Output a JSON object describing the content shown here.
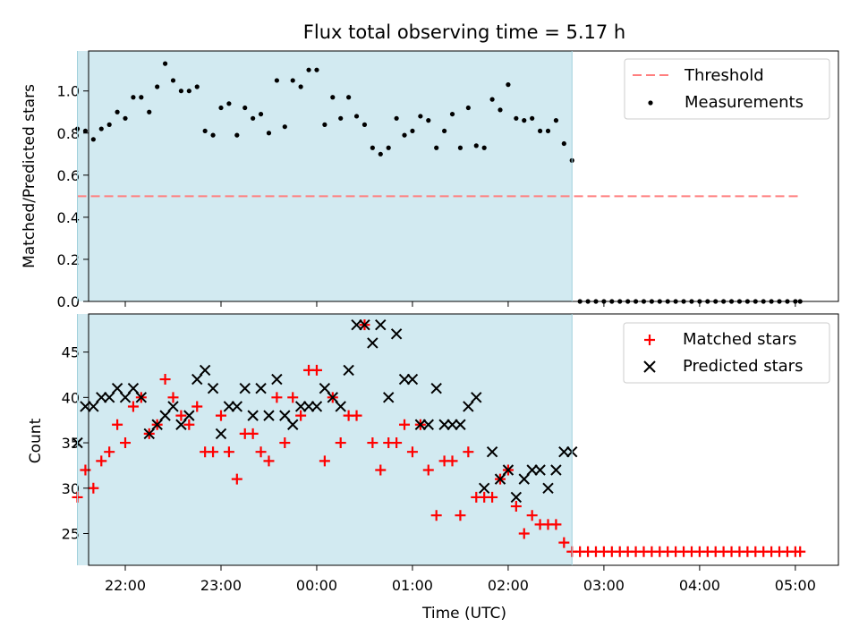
{
  "title": "Flux total observing time = 5.17 h",
  "xlabel": "Time (UTC)",
  "colors": {
    "shade": "#add8e6",
    "threshold": "#ff7f7f",
    "measurements": "#000000",
    "matched": "#ff0000",
    "predicted": "#000000"
  },
  "chart_data": [
    {
      "type": "scatter",
      "panel": "top",
      "ylabel": "Matched/Predicted stars",
      "xlim": [
        "21:37",
        "05:27"
      ],
      "ylim": [
        0.0,
        1.19
      ],
      "yticks": [
        0.0,
        0.2,
        0.4,
        0.6,
        0.8,
        1.0
      ],
      "xticks": [
        "22:00",
        "23:00",
        "00:00",
        "01:00",
        "02:00",
        "03:00",
        "04:00",
        "05:00"
      ],
      "shaded_span": [
        "21:30",
        "02:40"
      ],
      "legend": [
        "Threshold",
        "Measurements"
      ],
      "legend_position": "upper right",
      "threshold": {
        "name": "Threshold",
        "value": 0.5,
        "x": [
          "21:30",
          "05:03"
        ]
      },
      "series": [
        {
          "name": "Measurements",
          "x": [
            "21:30",
            "21:35",
            "21:40",
            "21:45",
            "21:50",
            "21:55",
            "22:00",
            "22:05",
            "22:10",
            "22:15",
            "22:20",
            "22:25",
            "22:30",
            "22:35",
            "22:40",
            "22:45",
            "22:50",
            "22:55",
            "23:00",
            "23:05",
            "23:10",
            "23:15",
            "23:20",
            "23:25",
            "23:30",
            "23:35",
            "23:40",
            "23:45",
            "23:50",
            "23:55",
            "00:00",
            "00:05",
            "00:10",
            "00:15",
            "00:20",
            "00:25",
            "00:30",
            "00:35",
            "00:40",
            "00:45",
            "00:50",
            "00:55",
            "01:00",
            "01:05",
            "01:10",
            "01:15",
            "01:20",
            "01:25",
            "01:30",
            "01:35",
            "01:40",
            "01:45",
            "01:50",
            "01:55",
            "02:00",
            "02:05",
            "02:10",
            "02:15",
            "02:20",
            "02:25",
            "02:30",
            "02:35",
            "02:40",
            "02:45",
            "02:50",
            "02:55",
            "03:00",
            "03:05",
            "03:10",
            "03:15",
            "03:20",
            "03:25",
            "03:30",
            "03:35",
            "03:40",
            "03:45",
            "03:50",
            "03:55",
            "04:00",
            "04:05",
            "04:10",
            "04:15",
            "04:20",
            "04:25",
            "04:30",
            "04:35",
            "04:40",
            "04:45",
            "04:50",
            "04:55",
            "05:00",
            "05:03"
          ],
          "y": [
            0.82,
            0.81,
            0.77,
            0.82,
            0.84,
            0.9,
            0.87,
            0.97,
            0.97,
            0.9,
            1.02,
            1.13,
            1.05,
            1.0,
            1.0,
            1.02,
            0.81,
            0.79,
            0.92,
            0.94,
            0.79,
            0.92,
            0.87,
            0.89,
            0.8,
            1.05,
            0.83,
            1.05,
            1.02,
            1.1,
            1.1,
            0.84,
            0.97,
            0.87,
            0.97,
            0.88,
            0.84,
            0.73,
            0.7,
            0.73,
            0.87,
            0.79,
            0.81,
            0.88,
            0.86,
            0.73,
            0.81,
            0.89,
            0.73,
            0.92,
            0.74,
            0.73,
            0.96,
            0.91,
            1.03,
            0.87,
            0.86,
            0.87,
            0.81,
            0.81,
            0.86,
            0.75,
            0.67,
            0.0,
            0.0,
            0.0,
            0.0,
            0.0,
            0.0,
            0.0,
            0.0,
            0.0,
            0.0,
            0.0,
            0.0,
            0.0,
            0.0,
            0.0,
            0.0,
            0.0,
            0.0,
            0.0,
            0.0,
            0.0,
            0.0,
            0.0,
            0.0,
            0.0,
            0.0,
            0.0,
            0.0,
            0.0
          ]
        }
      ]
    },
    {
      "type": "scatter",
      "panel": "bottom",
      "ylabel": "Count",
      "xlim": [
        "21:37",
        "05:27"
      ],
      "ylim": [
        21.5,
        49.2
      ],
      "yticks": [
        25,
        30,
        35,
        40,
        45
      ],
      "xticks": [
        "22:00",
        "23:00",
        "00:00",
        "01:00",
        "02:00",
        "03:00",
        "04:00",
        "05:00"
      ],
      "shaded_span": [
        "21:30",
        "02:40"
      ],
      "legend": [
        "Matched stars",
        "Predicted stars"
      ],
      "legend_position": "upper right",
      "series": [
        {
          "name": "Matched stars",
          "marker": "+",
          "x": [
            "21:30",
            "21:35",
            "21:40",
            "21:45",
            "21:50",
            "21:55",
            "22:00",
            "22:05",
            "22:10",
            "22:15",
            "22:20",
            "22:25",
            "22:30",
            "22:35",
            "22:40",
            "22:45",
            "22:50",
            "22:55",
            "23:00",
            "23:05",
            "23:10",
            "23:15",
            "23:20",
            "23:25",
            "23:30",
            "23:35",
            "23:40",
            "23:45",
            "23:50",
            "23:55",
            "00:00",
            "00:05",
            "00:10",
            "00:15",
            "00:20",
            "00:25",
            "00:30",
            "00:35",
            "00:40",
            "00:45",
            "00:50",
            "00:55",
            "01:00",
            "01:05",
            "01:10",
            "01:15",
            "01:20",
            "01:25",
            "01:30",
            "01:35",
            "01:40",
            "01:45",
            "01:50",
            "01:55",
            "02:00",
            "02:05",
            "02:10",
            "02:15",
            "02:20",
            "02:25",
            "02:30",
            "02:35",
            "02:40",
            "02:45",
            "02:50",
            "02:55",
            "03:00",
            "03:05",
            "03:10",
            "03:15",
            "03:20",
            "03:25",
            "03:30",
            "03:35",
            "03:40",
            "03:45",
            "03:50",
            "03:55",
            "04:00",
            "04:05",
            "04:10",
            "04:15",
            "04:20",
            "04:25",
            "04:30",
            "04:35",
            "04:40",
            "04:45",
            "04:50",
            "04:55",
            "05:00",
            "05:03"
          ],
          "y": [
            29,
            32,
            30,
            33,
            34,
            37,
            35,
            39,
            40,
            36,
            37,
            42,
            40,
            38,
            37,
            39,
            34,
            34,
            38,
            34,
            31,
            36,
            36,
            34,
            33,
            40,
            35,
            40,
            38,
            43,
            43,
            33,
            40,
            35,
            38,
            38,
            48,
            35,
            32,
            35,
            35,
            37,
            34,
            37,
            32,
            27,
            33,
            33,
            27,
            34,
            29,
            29,
            29,
            31,
            32,
            28,
            25,
            27,
            26,
            26,
            26,
            24,
            23,
            23,
            23,
            23,
            23,
            23,
            23,
            23,
            23,
            23,
            23,
            23,
            23,
            23,
            23,
            23,
            23,
            23,
            23,
            23,
            23,
            23,
            23,
            23,
            23,
            23,
            23,
            23,
            23,
            23
          ]
        },
        {
          "name": "Predicted stars",
          "marker": "x",
          "x": [
            "21:30",
            "21:35",
            "21:40",
            "21:45",
            "21:50",
            "21:55",
            "22:00",
            "22:05",
            "22:10",
            "22:15",
            "22:20",
            "22:25",
            "22:30",
            "22:35",
            "22:40",
            "22:45",
            "22:50",
            "22:55",
            "23:00",
            "23:05",
            "23:10",
            "23:15",
            "23:20",
            "23:25",
            "23:30",
            "23:35",
            "23:40",
            "23:45",
            "23:50",
            "23:55",
            "00:00",
            "00:05",
            "00:10",
            "00:15",
            "00:20",
            "00:25",
            "00:30",
            "00:35",
            "00:40",
            "00:45",
            "00:50",
            "00:55",
            "01:00",
            "01:05",
            "01:10",
            "01:15",
            "01:20",
            "01:25",
            "01:30",
            "01:35",
            "01:40",
            "01:45",
            "01:50",
            "01:55",
            "02:00",
            "02:05",
            "02:10",
            "02:15",
            "02:20",
            "02:25",
            "02:30",
            "02:35",
            "02:40"
          ],
          "y": [
            35,
            39,
            39,
            40,
            40,
            41,
            40,
            41,
            40,
            36,
            37,
            38,
            39,
            37,
            38,
            42,
            43,
            41,
            36,
            39,
            39,
            41,
            38,
            41,
            38,
            42,
            38,
            37,
            39,
            39,
            39,
            41,
            40,
            39,
            43,
            48,
            48,
            46,
            48,
            40,
            47,
            42,
            42,
            37,
            37,
            41,
            37,
            37,
            37,
            39,
            40,
            30,
            34,
            31,
            32,
            29,
            31,
            32,
            32,
            30,
            32,
            34,
            34
          ]
        }
      ]
    }
  ]
}
